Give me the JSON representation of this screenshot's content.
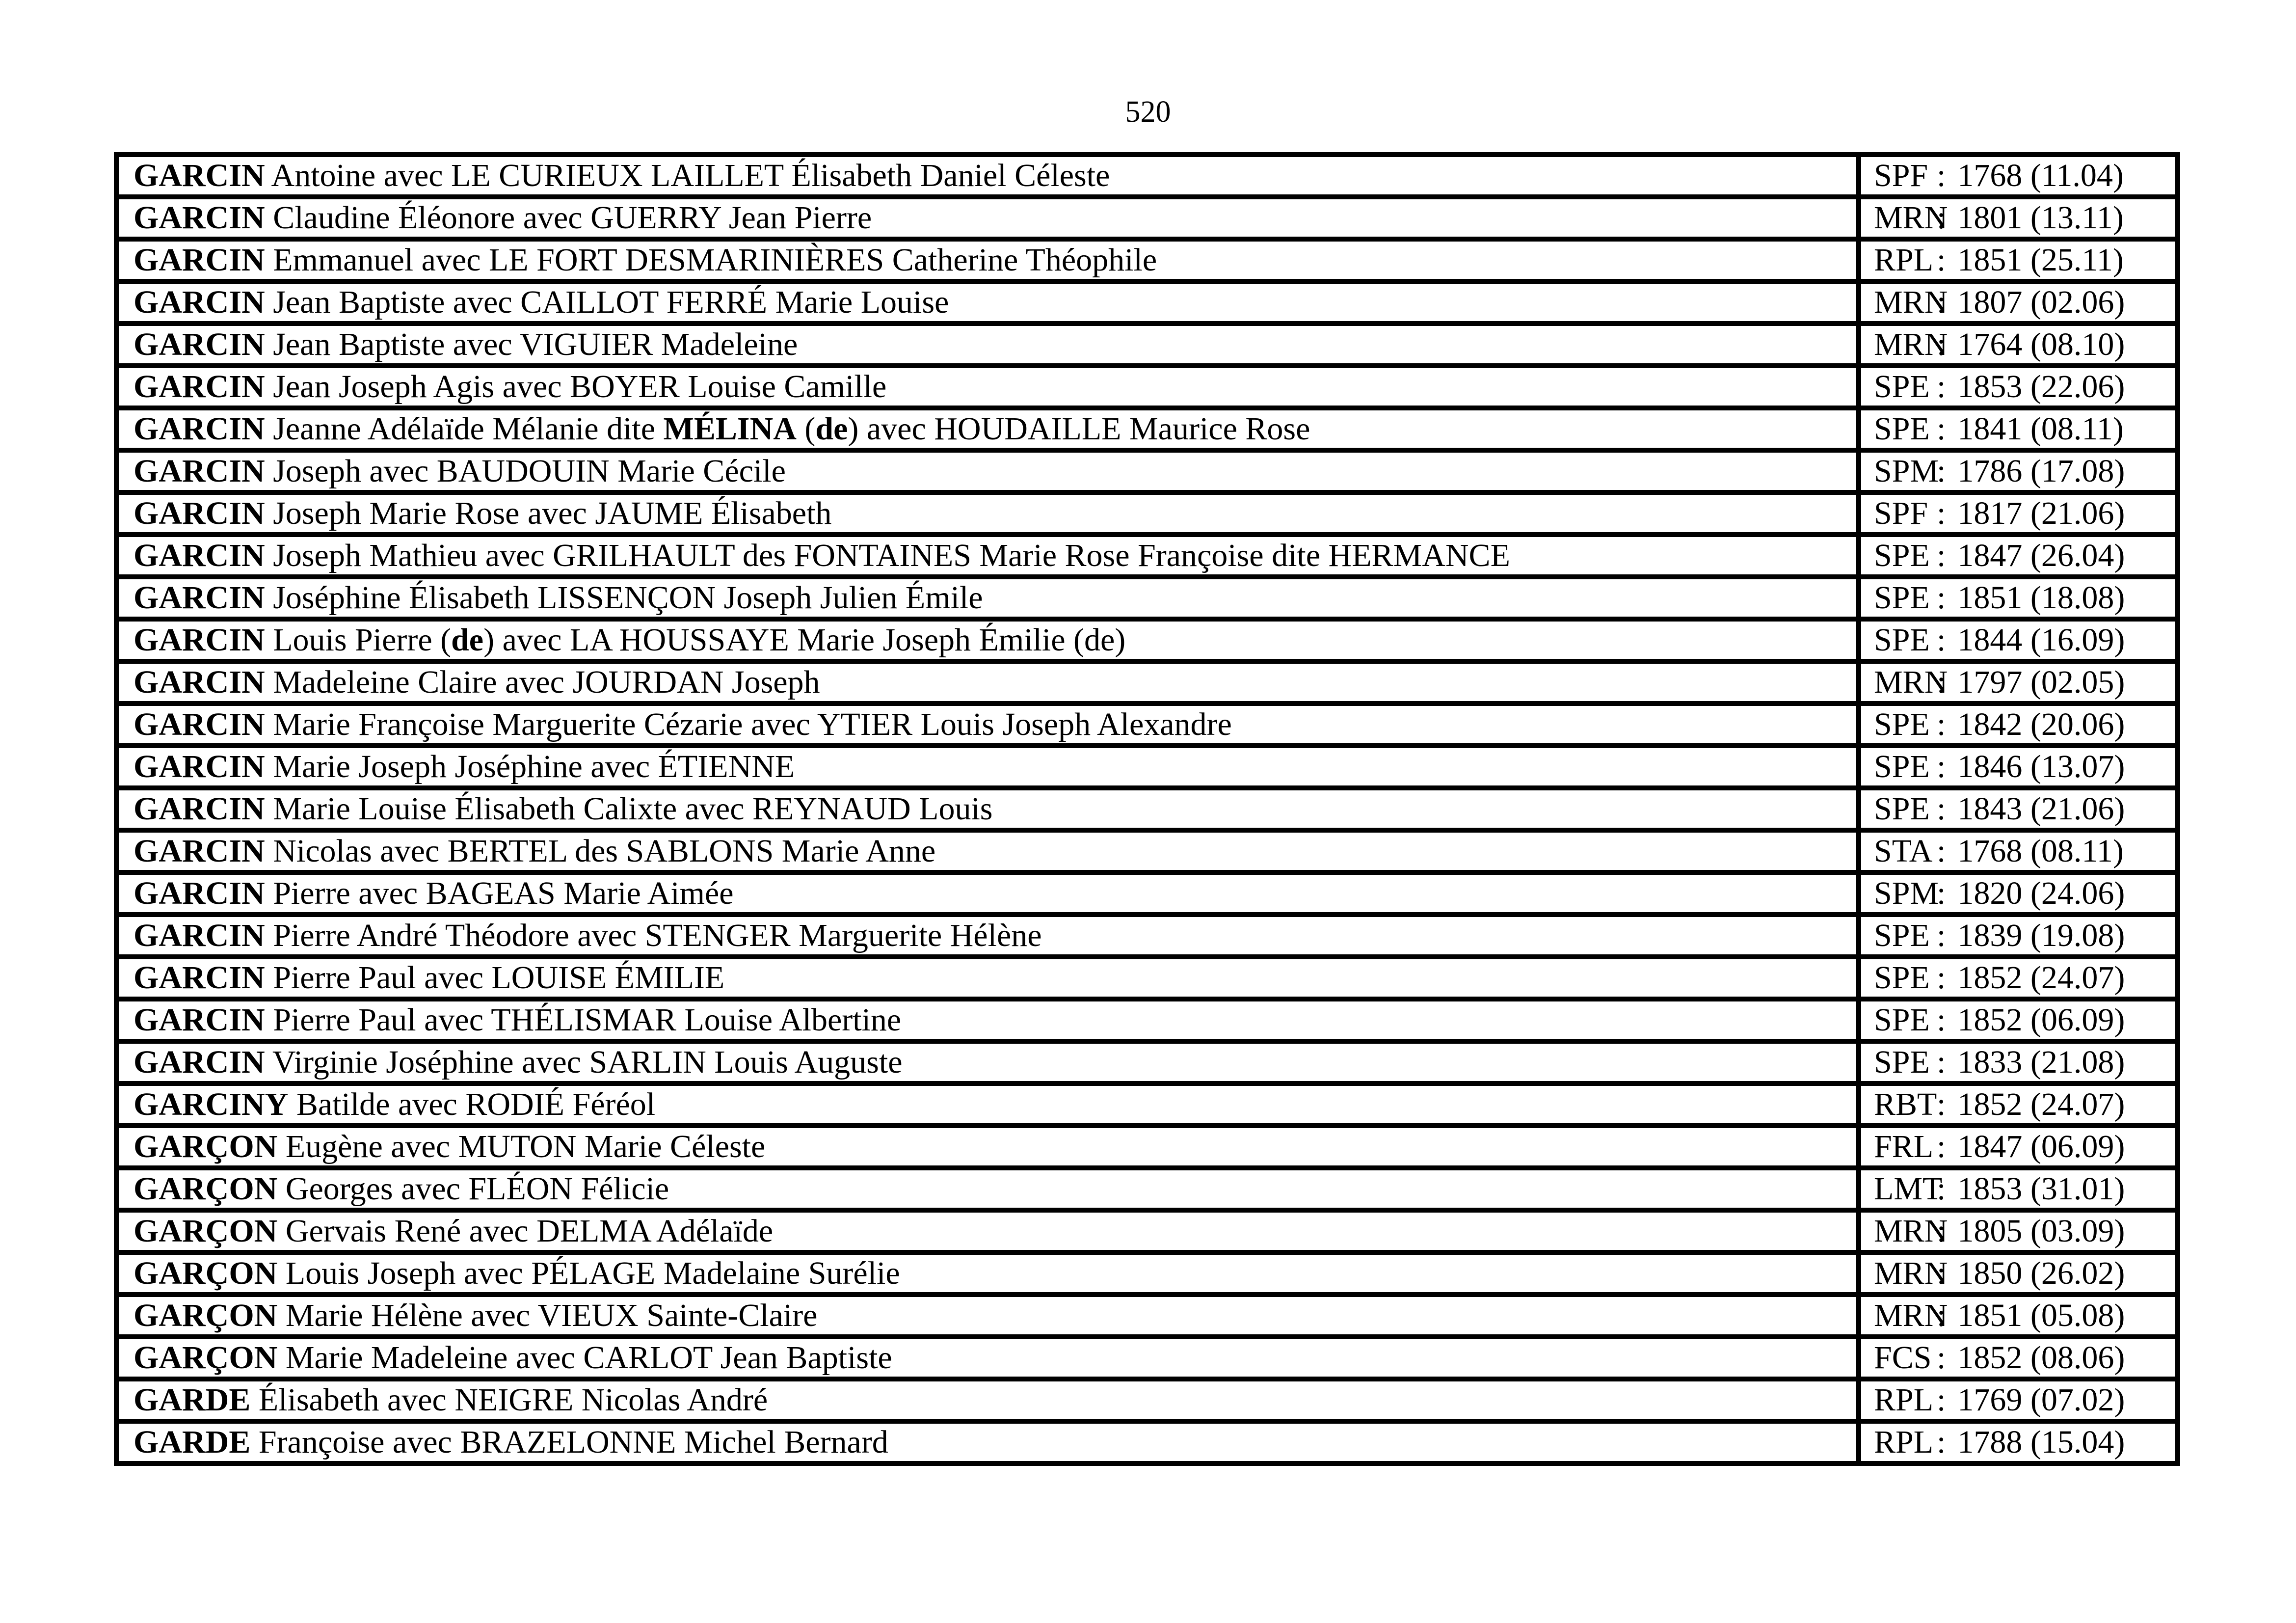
{
  "page": {
    "number": "520"
  },
  "colors": {
    "text": "#000000",
    "border": "#000000",
    "background": "#ffffff"
  },
  "table": {
    "colon": ":",
    "rows": [
      {
        "name": [
          {
            "t": "GARCIN",
            "b": true
          },
          {
            "t": " Antoine avec LE CURIEUX LAILLET Élisabeth Daniel Céleste",
            "b": false
          }
        ],
        "code": "SPF",
        "ref": "1768 (11.04)"
      },
      {
        "name": [
          {
            "t": "GARCIN",
            "b": true
          },
          {
            "t": " Claudine Éléonore avec GUERRY Jean Pierre",
            "b": false
          }
        ],
        "code": "MRN",
        "ref": "1801 (13.11)"
      },
      {
        "name": [
          {
            "t": "GARCIN",
            "b": true
          },
          {
            "t": " Emmanuel avec LE FORT DESMARINIÈRES Catherine Théophile",
            "b": false
          }
        ],
        "code": "RPL",
        "ref": "1851 (25.11)"
      },
      {
        "name": [
          {
            "t": "GARCIN",
            "b": true
          },
          {
            "t": " Jean Baptiste avec CAILLOT FERRÉ Marie Louise",
            "b": false
          }
        ],
        "code": "MRN",
        "ref": "1807 (02.06)"
      },
      {
        "name": [
          {
            "t": "GARCIN",
            "b": true
          },
          {
            "t": " Jean Baptiste avec VIGUIER Madeleine",
            "b": false
          }
        ],
        "code": "MRN",
        "ref": "1764 (08.10)"
      },
      {
        "name": [
          {
            "t": "GARCIN",
            "b": true
          },
          {
            "t": " Jean Joseph Agis avec BOYER Louise Camille",
            "b": false
          }
        ],
        "code": "SPE",
        "ref": "1853 (22.06)"
      },
      {
        "name": [
          {
            "t": "GARCIN",
            "b": true
          },
          {
            "t": " Jeanne Adélaïde Mélanie dite ",
            "b": false
          },
          {
            "t": "MÉLINA",
            "b": true
          },
          {
            "t": " (",
            "b": false
          },
          {
            "t": "de",
            "b": true
          },
          {
            "t": ") avec HOUDAILLE Maurice Rose",
            "b": false
          }
        ],
        "code": "SPE",
        "ref": "1841 (08.11)"
      },
      {
        "name": [
          {
            "t": "GARCIN",
            "b": true
          },
          {
            "t": " Joseph avec BAUDOUIN Marie Cécile",
            "b": false
          }
        ],
        "code": "SPM",
        "ref": "1786 (17.08)"
      },
      {
        "name": [
          {
            "t": "GARCIN",
            "b": true
          },
          {
            "t": " Joseph Marie Rose avec JAUME Élisabeth",
            "b": false
          }
        ],
        "code": "SPF",
        "ref": "1817 (21.06)"
      },
      {
        "name": [
          {
            "t": "GARCIN",
            "b": true
          },
          {
            "t": " Joseph Mathieu avec GRILHAULT des FONTAINES Marie Rose Françoise dite HERMANCE",
            "b": false
          }
        ],
        "code": "SPE",
        "ref": "1847 (26.04)"
      },
      {
        "name": [
          {
            "t": "GARCIN",
            "b": true
          },
          {
            "t": " Joséphine Élisabeth LISSENÇON Joseph Julien Émile",
            "b": false
          }
        ],
        "code": "SPE",
        "ref": "1851 (18.08)"
      },
      {
        "name": [
          {
            "t": "GARCIN",
            "b": true
          },
          {
            "t": " Louis Pierre (",
            "b": false
          },
          {
            "t": "de",
            "b": true
          },
          {
            "t": ") avec LA HOUSSAYE Marie Joseph Émilie (de)",
            "b": false
          }
        ],
        "code": "SPE",
        "ref": "1844 (16.09)"
      },
      {
        "name": [
          {
            "t": "GARCIN",
            "b": true
          },
          {
            "t": " Madeleine Claire avec JOURDAN Joseph",
            "b": false
          }
        ],
        "code": "MRN",
        "ref": "1797 (02.05)"
      },
      {
        "name": [
          {
            "t": "GARCIN",
            "b": true
          },
          {
            "t": " Marie Françoise Marguerite Cézarie avec YTIER Louis Joseph Alexandre",
            "b": false
          }
        ],
        "code": "SPE",
        "ref": "1842 (20.06)"
      },
      {
        "name": [
          {
            "t": "GARCIN",
            "b": true
          },
          {
            "t": " Marie Joseph Joséphine avec ÉTIENNE",
            "b": false
          }
        ],
        "code": "SPE",
        "ref": "1846 (13.07)"
      },
      {
        "name": [
          {
            "t": "GARCIN",
            "b": true
          },
          {
            "t": " Marie Louise Élisabeth Calixte avec REYNAUD Louis",
            "b": false
          }
        ],
        "code": "SPE",
        "ref": "1843 (21.06)"
      },
      {
        "name": [
          {
            "t": "GARCIN",
            "b": true
          },
          {
            "t": " Nicolas avec BERTEL des SABLONS Marie Anne",
            "b": false
          }
        ],
        "code": "STA",
        "ref": "1768 (08.11)"
      },
      {
        "name": [
          {
            "t": "GARCIN",
            "b": true
          },
          {
            "t": " Pierre avec BAGEAS Marie Aimée",
            "b": false
          }
        ],
        "code": "SPM",
        "ref": "1820 (24.06)"
      },
      {
        "name": [
          {
            "t": "GARCIN",
            "b": true
          },
          {
            "t": " Pierre André Théodore avec STENGER Marguerite Hélène",
            "b": false
          }
        ],
        "code": "SPE",
        "ref": "1839 (19.08)"
      },
      {
        "name": [
          {
            "t": "GARCIN",
            "b": true
          },
          {
            "t": " Pierre Paul avec LOUISE ÉMILIE",
            "b": false
          }
        ],
        "code": "SPE",
        "ref": "1852 (24.07)"
      },
      {
        "name": [
          {
            "t": "GARCIN",
            "b": true
          },
          {
            "t": " Pierre Paul avec THÉLISMAR Louise Albertine",
            "b": false
          }
        ],
        "code": "SPE",
        "ref": "1852 (06.09)"
      },
      {
        "name": [
          {
            "t": "GARCIN",
            "b": true
          },
          {
            "t": " Virginie Joséphine avec SARLIN Louis Auguste",
            "b": false
          }
        ],
        "code": "SPE",
        "ref": "1833 (21.08)"
      },
      {
        "name": [
          {
            "t": "GARCINY",
            "b": true
          },
          {
            "t": " Batilde avec RODIÉ Féréol",
            "b": false
          }
        ],
        "code": "RBT",
        "ref": "1852 (24.07)"
      },
      {
        "name": [
          {
            "t": "GARÇON",
            "b": true
          },
          {
            "t": " Eugène avec MUTON Marie Céleste",
            "b": false
          }
        ],
        "code": "FRL",
        "ref": "1847 (06.09)"
      },
      {
        "name": [
          {
            "t": "GARÇON",
            "b": true
          },
          {
            "t": " Georges avec FLÉON Félicie",
            "b": false
          }
        ],
        "code": "LMT",
        "ref": "1853 (31.01)"
      },
      {
        "name": [
          {
            "t": "GARÇON",
            "b": true
          },
          {
            "t": " Gervais René avec DELMA Adélaïde",
            "b": false
          }
        ],
        "code": "MRN",
        "ref": "1805 (03.09)"
      },
      {
        "name": [
          {
            "t": "GARÇON",
            "b": true
          },
          {
            "t": " Louis Joseph avec PÉLAGE Madelaine Surélie",
            "b": false
          }
        ],
        "code": "MRN",
        "ref": "1850 (26.02)"
      },
      {
        "name": [
          {
            "t": "GARÇON",
            "b": true
          },
          {
            "t": " Marie Hélène avec VIEUX Sainte-Claire",
            "b": false
          }
        ],
        "code": "MRN",
        "ref": "1851 (05.08)"
      },
      {
        "name": [
          {
            "t": "GARÇON",
            "b": true
          },
          {
            "t": " Marie Madeleine avec CARLOT Jean Baptiste",
            "b": false
          }
        ],
        "code": "FCS",
        "ref": "1852 (08.06)"
      },
      {
        "name": [
          {
            "t": "GARDE",
            "b": true
          },
          {
            "t": " Élisabeth avec NEIGRE Nicolas André",
            "b": false
          }
        ],
        "code": "RPL",
        "ref": "1769 (07.02)"
      },
      {
        "name": [
          {
            "t": "GARDE",
            "b": true
          },
          {
            "t": " Françoise avec BRAZELONNE Michel Bernard",
            "b": false
          }
        ],
        "code": "RPL",
        "ref": "1788 (15.04)"
      }
    ]
  }
}
